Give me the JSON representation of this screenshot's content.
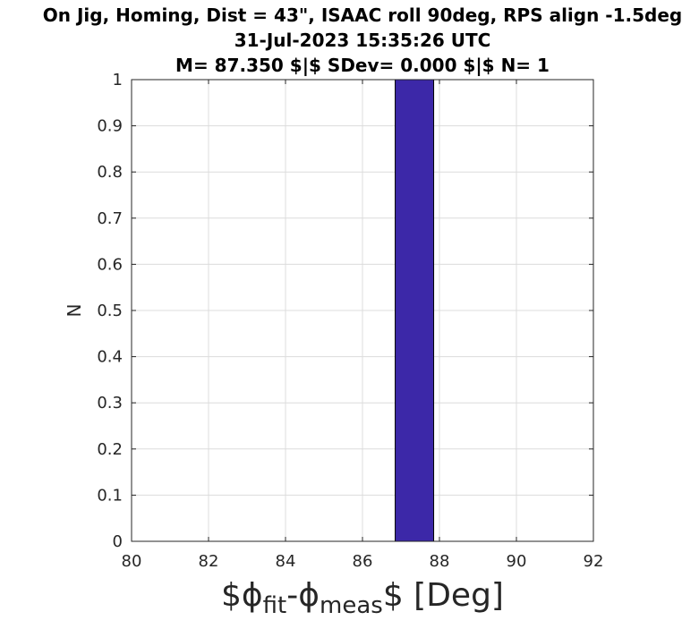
{
  "chart_data": {
    "type": "bar",
    "title_lines": [
      "On Jig, Homing, Dist = 43\", ISAAC roll 90deg, RPS align -1.5deg",
      "31-Jul-2023 15:35:26 UTC",
      "M= 87.350 $|$ SDev= 0.000 $|$ N= 1"
    ],
    "xlabel": {
      "prefix": "$ϕ",
      "sub1": "fit",
      "middle": "-ϕ",
      "sub2": "meas",
      "suffix": "$ [Deg]"
    },
    "ylabel": "N",
    "xlim": [
      80,
      92
    ],
    "ylim": [
      0,
      1
    ],
    "xticks": [
      "80",
      "82",
      "84",
      "86",
      "88",
      "90",
      "92"
    ],
    "yticks": [
      "0",
      "0.1",
      "0.2",
      "0.3",
      "0.4",
      "0.5",
      "0.6",
      "0.7",
      "0.8",
      "0.9",
      "1"
    ],
    "grid": true,
    "bars": [
      {
        "x_start": 86.85,
        "x_end": 87.85,
        "value": 1
      }
    ],
    "bar_color": "#3c28a8",
    "bar_edge_color": "#000000"
  }
}
